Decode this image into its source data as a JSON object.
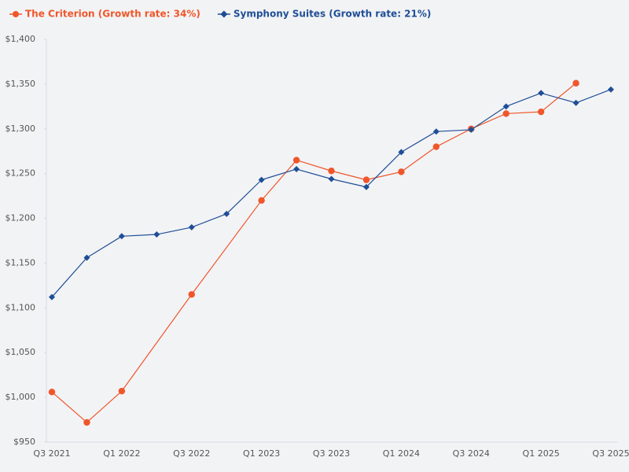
{
  "chart_data": {
    "type": "line",
    "categories": [
      "Q3 2021",
      null,
      "Q1 2022",
      null,
      "Q3 2022",
      null,
      "Q1 2023",
      null,
      "Q3 2023",
      null,
      "Q1 2024",
      null,
      "Q3 2024",
      null,
      "Q1 2025",
      null,
      "Q3 2025"
    ],
    "series": [
      {
        "name": "The Criterion (Growth rate: 34%)",
        "color": "#f0562a",
        "marker": "circle",
        "values": [
          1006,
          972,
          1007,
          null,
          1115,
          null,
          1220,
          1265,
          1253,
          1243,
          1252,
          1280,
          1300,
          1317,
          1319,
          1351,
          null
        ]
      },
      {
        "name": "Symphony Suites (Growth rate: 21%)",
        "color": "#1f4e96",
        "marker": "diamond",
        "values": [
          1112,
          1156,
          1180,
          1182,
          1190,
          1205,
          1243,
          1255,
          1244,
          1235,
          1274,
          1297,
          1299,
          1325,
          1340,
          1329,
          1344
        ]
      }
    ],
    "ylim": [
      950,
      1400
    ],
    "yticks": [
      {
        "value": 950,
        "label": "$950"
      },
      {
        "value": 1000,
        "label": "$1,000"
      },
      {
        "value": 1050,
        "label": "$1,050"
      },
      {
        "value": 1100,
        "label": "$1,100"
      },
      {
        "value": 1150,
        "label": "$1,150"
      },
      {
        "value": 1200,
        "label": "$1,200"
      },
      {
        "value": 1250,
        "label": "$1,250"
      },
      {
        "value": 1300,
        "label": "$1,300"
      },
      {
        "value": 1350,
        "label": "$1,350"
      },
      {
        "value": 1400,
        "label": "$1,400"
      }
    ],
    "grid": false
  }
}
